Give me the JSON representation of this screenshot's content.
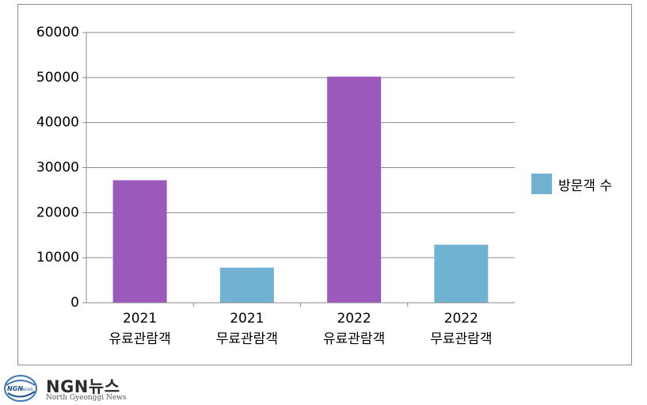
{
  "chart_data": {
    "type": "bar",
    "categories": [
      [
        "2021",
        "유료관람객"
      ],
      [
        "2021",
        "무료관람객"
      ],
      [
        "2022",
        "유료관람객"
      ],
      [
        "2022",
        "무료관람객"
      ]
    ],
    "series": [
      {
        "name": "방문객 수",
        "values": [
          27200,
          7800,
          50200,
          12900
        ]
      }
    ],
    "bar_colors": [
      "#9b59bb",
      "#71b1d1",
      "#9b59bb",
      "#71b1d1"
    ],
    "legend_color": "#71b1d1",
    "yticks": [
      "0",
      "10000",
      "20000",
      "30000",
      "40000",
      "50000",
      "60000"
    ],
    "ylim": [
      0,
      60000
    ],
    "grid": true,
    "legend_position": "right",
    "title": "",
    "xlabel": "",
    "ylabel": ""
  },
  "logo": {
    "mark_text": "NGNNEWS",
    "name": "NGN뉴스",
    "subtitle": "North Gyeonggi News"
  }
}
